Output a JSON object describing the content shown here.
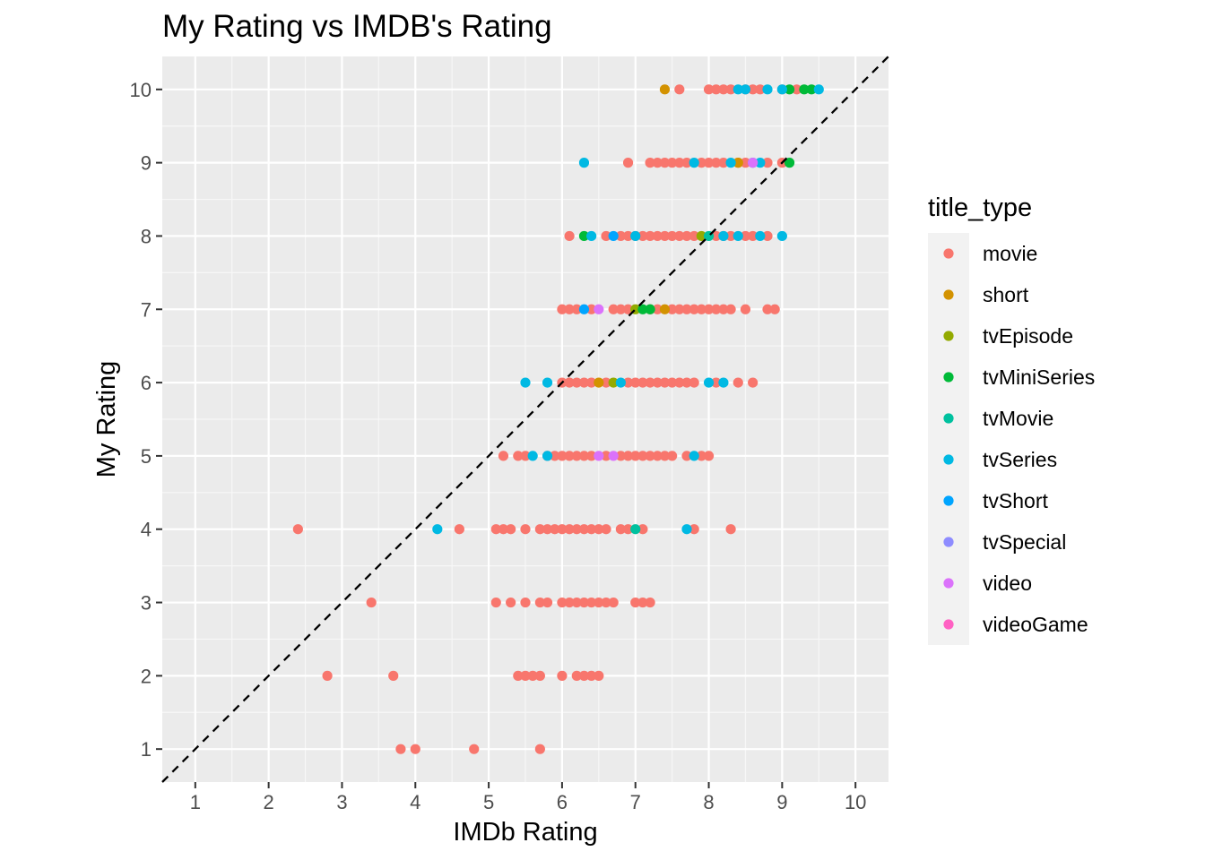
{
  "chart_data": {
    "type": "scatter",
    "title": "My Rating vs IMDB's Rating",
    "xlabel": "IMDb Rating",
    "ylabel": "My Rating",
    "xlim": [
      0.55,
      10.45
    ],
    "ylim": [
      0.55,
      10.45
    ],
    "x_ticks": [
      1,
      2,
      3,
      4,
      5,
      6,
      7,
      8,
      9,
      10
    ],
    "y_ticks": [
      1,
      2,
      3,
      4,
      5,
      6,
      7,
      8,
      9,
      10
    ],
    "grid": true,
    "reference_line": {
      "type": "identity",
      "slope": 1,
      "intercept": 0,
      "style": "dashed",
      "color": "#000000"
    },
    "legend": {
      "title": "title_type",
      "placement": "right",
      "entries": [
        {
          "label": "movie",
          "color": "#F8766D"
        },
        {
          "label": "short",
          "color": "#D39200"
        },
        {
          "label": "tvEpisode",
          "color": "#93AA00"
        },
        {
          "label": "tvMiniSeries",
          "color": "#00BA38"
        },
        {
          "label": "tvMovie",
          "color": "#00C19F"
        },
        {
          "label": "tvSeries",
          "color": "#00B9E3"
        },
        {
          "label": "tvShort",
          "color": "#00A5FF"
        },
        {
          "label": "tvSpecial",
          "color": "#8E8CFF"
        },
        {
          "label": "video",
          "color": "#DB72FB"
        },
        {
          "label": "videoGame",
          "color": "#FF61C3"
        }
      ]
    },
    "series": [
      {
        "name": "movie",
        "points": [
          [
            7.6,
            10
          ],
          [
            8.0,
            10
          ],
          [
            8.1,
            10
          ],
          [
            8.2,
            10
          ],
          [
            8.3,
            10
          ],
          [
            8.5,
            10
          ],
          [
            8.6,
            10
          ],
          [
            8.7,
            10
          ],
          [
            9.0,
            10
          ],
          [
            9.2,
            10
          ],
          [
            6.9,
            9
          ],
          [
            7.2,
            9
          ],
          [
            7.3,
            9
          ],
          [
            7.4,
            9
          ],
          [
            7.5,
            9
          ],
          [
            7.6,
            9
          ],
          [
            7.7,
            9
          ],
          [
            7.9,
            9
          ],
          [
            8.0,
            9
          ],
          [
            8.1,
            9
          ],
          [
            8.2,
            9
          ],
          [
            8.4,
            9
          ],
          [
            8.5,
            9
          ],
          [
            8.8,
            9
          ],
          [
            9.0,
            9
          ],
          [
            6.1,
            8
          ],
          [
            6.6,
            8
          ],
          [
            6.8,
            8
          ],
          [
            6.9,
            8
          ],
          [
            7.0,
            8
          ],
          [
            7.1,
            8
          ],
          [
            7.2,
            8
          ],
          [
            7.3,
            8
          ],
          [
            7.4,
            8
          ],
          [
            7.5,
            8
          ],
          [
            7.6,
            8
          ],
          [
            7.7,
            8
          ],
          [
            7.8,
            8
          ],
          [
            8.1,
            8
          ],
          [
            8.2,
            8
          ],
          [
            8.3,
            8
          ],
          [
            8.5,
            8
          ],
          [
            8.6,
            8
          ],
          [
            8.8,
            8
          ],
          [
            6.0,
            7
          ],
          [
            6.1,
            7
          ],
          [
            6.2,
            7
          ],
          [
            6.4,
            7
          ],
          [
            6.7,
            7
          ],
          [
            6.8,
            7
          ],
          [
            6.9,
            7
          ],
          [
            7.2,
            7
          ],
          [
            7.3,
            7
          ],
          [
            7.5,
            7
          ],
          [
            7.6,
            7
          ],
          [
            7.7,
            7
          ],
          [
            7.8,
            7
          ],
          [
            7.9,
            7
          ],
          [
            8.0,
            7
          ],
          [
            8.1,
            7
          ],
          [
            8.2,
            7
          ],
          [
            8.3,
            7
          ],
          [
            8.5,
            7
          ],
          [
            8.8,
            7
          ],
          [
            8.9,
            7
          ],
          [
            6.0,
            6
          ],
          [
            6.1,
            6
          ],
          [
            6.2,
            6
          ],
          [
            6.3,
            6
          ],
          [
            6.4,
            6
          ],
          [
            6.6,
            6
          ],
          [
            6.9,
            6
          ],
          [
            7.0,
            6
          ],
          [
            7.1,
            6
          ],
          [
            7.2,
            6
          ],
          [
            7.3,
            6
          ],
          [
            7.4,
            6
          ],
          [
            7.5,
            6
          ],
          [
            7.6,
            6
          ],
          [
            7.7,
            6
          ],
          [
            7.8,
            6
          ],
          [
            8.1,
            6
          ],
          [
            8.4,
            6
          ],
          [
            8.6,
            6
          ],
          [
            5.2,
            5
          ],
          [
            5.4,
            5
          ],
          [
            5.5,
            5
          ],
          [
            5.8,
            5
          ],
          [
            5.9,
            5
          ],
          [
            6.0,
            5
          ],
          [
            6.1,
            5
          ],
          [
            6.2,
            5
          ],
          [
            6.3,
            5
          ],
          [
            6.4,
            5
          ],
          [
            6.6,
            5
          ],
          [
            6.8,
            5
          ],
          [
            6.9,
            5
          ],
          [
            7.0,
            5
          ],
          [
            7.1,
            5
          ],
          [
            7.2,
            5
          ],
          [
            7.3,
            5
          ],
          [
            7.4,
            5
          ],
          [
            7.5,
            5
          ],
          [
            7.7,
            5
          ],
          [
            7.9,
            5
          ],
          [
            8.0,
            5
          ],
          [
            2.4,
            4
          ],
          [
            4.6,
            4
          ],
          [
            5.1,
            4
          ],
          [
            5.2,
            4
          ],
          [
            5.3,
            4
          ],
          [
            5.5,
            4
          ],
          [
            5.7,
            4
          ],
          [
            5.8,
            4
          ],
          [
            5.9,
            4
          ],
          [
            6.0,
            4
          ],
          [
            6.1,
            4
          ],
          [
            6.2,
            4
          ],
          [
            6.3,
            4
          ],
          [
            6.4,
            4
          ],
          [
            6.5,
            4
          ],
          [
            6.6,
            4
          ],
          [
            6.8,
            4
          ],
          [
            6.9,
            4
          ],
          [
            7.1,
            4
          ],
          [
            7.8,
            4
          ],
          [
            8.3,
            4
          ],
          [
            3.4,
            3
          ],
          [
            5.1,
            3
          ],
          [
            5.3,
            3
          ],
          [
            5.5,
            3
          ],
          [
            5.7,
            3
          ],
          [
            5.8,
            3
          ],
          [
            6.0,
            3
          ],
          [
            6.1,
            3
          ],
          [
            6.2,
            3
          ],
          [
            6.3,
            3
          ],
          [
            6.4,
            3
          ],
          [
            6.5,
            3
          ],
          [
            6.6,
            3
          ],
          [
            6.7,
            3
          ],
          [
            7.0,
            3
          ],
          [
            7.1,
            3
          ],
          [
            7.2,
            3
          ],
          [
            2.8,
            2
          ],
          [
            3.7,
            2
          ],
          [
            5.4,
            2
          ],
          [
            5.5,
            2
          ],
          [
            5.6,
            2
          ],
          [
            5.7,
            2
          ],
          [
            6.0,
            2
          ],
          [
            6.2,
            2
          ],
          [
            6.3,
            2
          ],
          [
            6.4,
            2
          ],
          [
            6.5,
            2
          ],
          [
            3.8,
            1
          ],
          [
            4.0,
            1
          ],
          [
            4.8,
            1
          ],
          [
            5.7,
            1
          ]
        ]
      },
      {
        "name": "short",
        "points": [
          [
            7.4,
            10
          ],
          [
            8.4,
            9
          ],
          [
            6.5,
            6
          ],
          [
            7.4,
            7
          ]
        ]
      },
      {
        "name": "tvEpisode",
        "points": [
          [
            7.9,
            8
          ],
          [
            7.0,
            7
          ],
          [
            6.7,
            6
          ]
        ]
      },
      {
        "name": "tvMiniSeries",
        "points": [
          [
            9.1,
            10
          ],
          [
            9.3,
            10
          ],
          [
            9.4,
            10
          ],
          [
            9.1,
            9
          ],
          [
            6.3,
            8
          ],
          [
            7.1,
            7
          ],
          [
            7.2,
            7
          ]
        ]
      },
      {
        "name": "tvMovie",
        "points": [
          [
            8.0,
            8
          ],
          [
            7.0,
            4
          ]
        ]
      },
      {
        "name": "tvSeries",
        "points": [
          [
            8.4,
            10
          ],
          [
            8.5,
            10
          ],
          [
            8.8,
            10
          ],
          [
            9.0,
            10
          ],
          [
            9.5,
            10
          ],
          [
            6.3,
            9
          ],
          [
            7.8,
            9
          ],
          [
            8.3,
            9
          ],
          [
            8.6,
            9
          ],
          [
            8.7,
            9
          ],
          [
            6.4,
            8
          ],
          [
            7.0,
            8
          ],
          [
            8.2,
            8
          ],
          [
            8.4,
            8
          ],
          [
            8.7,
            8
          ],
          [
            9.0,
            8
          ],
          [
            5.5,
            6
          ],
          [
            5.8,
            6
          ],
          [
            6.8,
            6
          ],
          [
            8.0,
            6
          ],
          [
            8.2,
            6
          ],
          [
            5.6,
            5
          ],
          [
            5.8,
            5
          ],
          [
            7.8,
            5
          ],
          [
            4.3,
            4
          ],
          [
            7.7,
            4
          ]
        ]
      },
      {
        "name": "tvShort",
        "points": [
          [
            6.3,
            7
          ],
          [
            6.7,
            8
          ]
        ]
      },
      {
        "name": "tvSpecial",
        "points": []
      },
      {
        "name": "video",
        "points": [
          [
            6.5,
            7
          ],
          [
            6.5,
            5
          ],
          [
            6.7,
            5
          ],
          [
            8.6,
            9
          ]
        ]
      },
      {
        "name": "videoGame",
        "points": []
      }
    ]
  }
}
